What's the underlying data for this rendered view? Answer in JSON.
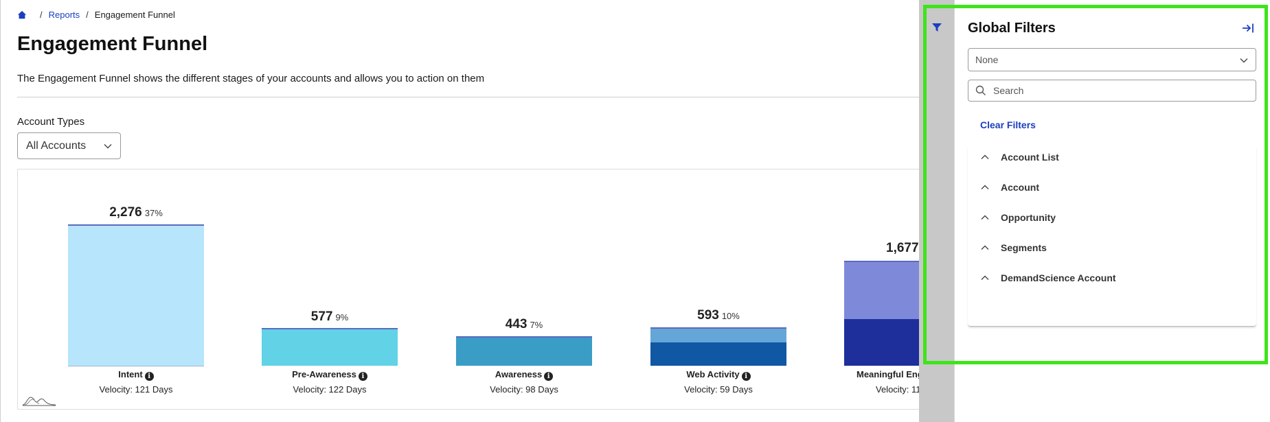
{
  "breadcrumb": {
    "home_icon": "home-icon",
    "reports": "Reports",
    "current": "Engagement Funnel"
  },
  "page": {
    "title": "Engagement Funnel",
    "description": "The Engagement Funnel shows the different stages of your accounts and allows you to action on them"
  },
  "account_types": {
    "label": "Account Types",
    "value": "All Accounts"
  },
  "funnel": {
    "stages": [
      {
        "name": "Intent",
        "count": "2,276",
        "pct": "37%",
        "velocity": "Velocity: 121 Days",
        "info": true,
        "value": 2276
      },
      {
        "name": "Pre-Awareness",
        "count": "577",
        "pct": "9%",
        "velocity": "Velocity: 122 Days",
        "info": true,
        "value": 577
      },
      {
        "name": "Awareness",
        "count": "443",
        "pct": "7%",
        "velocity": "Velocity: 98 Days",
        "info": true,
        "value": 443
      },
      {
        "name": "Web Activity",
        "count": "593",
        "pct": "10%",
        "velocity": "Velocity: 59 Days",
        "info": true,
        "value": 593
      },
      {
        "name": "Meaningful Eng",
        "count": "1,677",
        "pct": "",
        "velocity": "Velocity: 11",
        "info": false,
        "value": 1677
      }
    ],
    "colors": {
      "intent": "#b7e5fb",
      "pre_awareness": "#62d2e6",
      "awareness": "#3a9dc6",
      "web_activity_top": "#64a6d8",
      "web_activity_bottom": "#1057a4",
      "meaningful_top": "#7f89d9",
      "meaningful_bottom": "#1e2f9c"
    }
  },
  "global_filters": {
    "title": "Global Filters",
    "select_value": "None",
    "search_placeholder": "Search",
    "clear_label": "Clear Filters",
    "items": [
      "Account List",
      "Account",
      "Opportunity",
      "Segments",
      "DemandScience Account"
    ]
  },
  "accent_color": "#1a3fbf",
  "highlight_color": "#3ee41a"
}
